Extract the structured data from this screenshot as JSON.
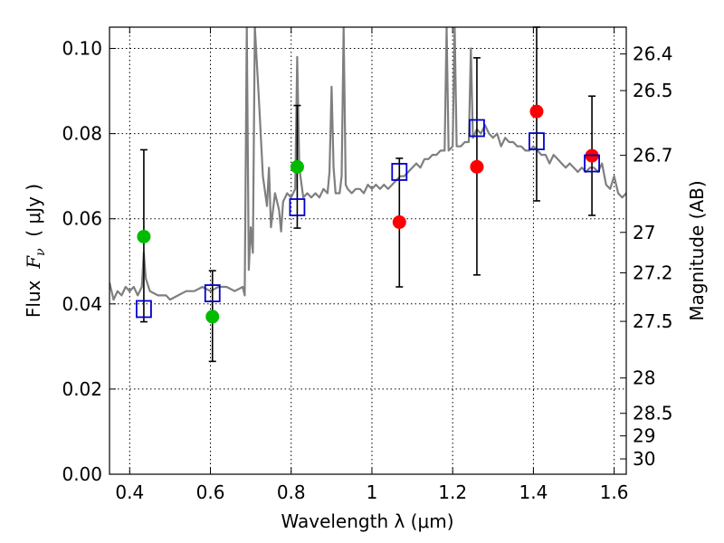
{
  "chart_data": {
    "type": "scatter",
    "xlabel": "Wavelength  λ (μm)",
    "ylabel": "Flux  F_ν  ( μJy )",
    "ylabel_parts": {
      "prefix": "Flux  ",
      "symbol": "F",
      "subscript": "ν",
      "unit": "  ( μJy )"
    },
    "y2label": "Magnitude (AB)",
    "xlim": [
      0.35,
      1.63
    ],
    "ylim": [
      0.0,
      0.105
    ],
    "grid": true,
    "x_ticks": [
      0.4,
      0.6,
      0.8,
      1.0,
      1.2,
      1.4,
      1.6
    ],
    "x_tick_labels": [
      "0.4",
      "0.6",
      "0.8",
      "1",
      "1.2",
      "1.4",
      "1.6"
    ],
    "y_ticks": [
      0.0,
      0.02,
      0.04,
      0.06,
      0.08,
      0.1
    ],
    "y_tick_labels": [
      "0.00",
      "0.02",
      "0.04",
      "0.06",
      "0.08",
      "0.10"
    ],
    "y2_tick_labels": [
      "26.4",
      "26.5",
      "26.7",
      "27",
      "27.2",
      "27.5",
      "28",
      "28.5",
      "29",
      "30"
    ],
    "y2_tick_fluxes": [
      0.0987,
      0.0901,
      0.0749,
      0.0568,
      0.0473,
      0.0359,
      0.0226,
      0.0143,
      0.009,
      0.0036
    ],
    "series": [
      {
        "name": "Model spectrum",
        "kind": "line",
        "color": "#7f7f7f",
        "x": [
          0.35,
          0.36,
          0.37,
          0.38,
          0.39,
          0.4,
          0.41,
          0.42,
          0.43,
          0.435,
          0.44,
          0.45,
          0.47,
          0.49,
          0.5,
          0.52,
          0.54,
          0.56,
          0.58,
          0.6,
          0.62,
          0.64,
          0.66,
          0.68,
          0.685,
          0.69,
          0.695,
          0.7,
          0.705,
          0.71,
          0.72,
          0.73,
          0.74,
          0.745,
          0.75,
          0.76,
          0.77,
          0.775,
          0.78,
          0.785,
          0.79,
          0.8,
          0.81,
          0.815,
          0.82,
          0.83,
          0.84,
          0.85,
          0.86,
          0.87,
          0.88,
          0.89,
          0.895,
          0.9,
          0.905,
          0.91,
          0.92,
          0.925,
          0.93,
          0.935,
          0.94,
          0.95,
          0.96,
          0.97,
          0.98,
          0.99,
          1.0,
          1.01,
          1.02,
          1.03,
          1.04,
          1.05,
          1.06,
          1.07,
          1.08,
          1.09,
          1.1,
          1.11,
          1.12,
          1.13,
          1.14,
          1.15,
          1.16,
          1.17,
          1.18,
          1.185,
          1.19,
          1.2,
          1.205,
          1.21,
          1.22,
          1.23,
          1.24,
          1.245,
          1.25,
          1.26,
          1.27,
          1.28,
          1.29,
          1.3,
          1.31,
          1.32,
          1.33,
          1.34,
          1.35,
          1.36,
          1.37,
          1.38,
          1.39,
          1.4,
          1.41,
          1.42,
          1.43,
          1.44,
          1.45,
          1.46,
          1.47,
          1.48,
          1.49,
          1.5,
          1.51,
          1.52,
          1.53,
          1.54,
          1.55,
          1.56,
          1.57,
          1.58,
          1.59,
          1.6,
          1.61,
          1.62,
          1.63
        ],
        "y": [
          0.045,
          0.041,
          0.043,
          0.042,
          0.044,
          0.043,
          0.044,
          0.042,
          0.044,
          0.052,
          0.046,
          0.043,
          0.042,
          0.042,
          0.041,
          0.042,
          0.043,
          0.043,
          0.044,
          0.043,
          0.044,
          0.044,
          0.043,
          0.044,
          0.042,
          0.105,
          0.048,
          0.058,
          0.052,
          0.105,
          0.088,
          0.07,
          0.063,
          0.072,
          0.058,
          0.066,
          0.062,
          0.057,
          0.064,
          0.065,
          0.066,
          0.065,
          0.067,
          0.098,
          0.072,
          0.065,
          0.066,
          0.065,
          0.066,
          0.065,
          0.067,
          0.066,
          0.071,
          0.091,
          0.072,
          0.066,
          0.066,
          0.07,
          0.105,
          0.068,
          0.067,
          0.066,
          0.067,
          0.067,
          0.066,
          0.068,
          0.067,
          0.068,
          0.067,
          0.068,
          0.067,
          0.068,
          0.069,
          0.07,
          0.07,
          0.071,
          0.072,
          0.073,
          0.072,
          0.074,
          0.074,
          0.075,
          0.075,
          0.076,
          0.076,
          0.105,
          0.076,
          0.077,
          0.105,
          0.077,
          0.077,
          0.078,
          0.078,
          0.1,
          0.079,
          0.081,
          0.08,
          0.082,
          0.08,
          0.079,
          0.08,
          0.077,
          0.079,
          0.078,
          0.078,
          0.077,
          0.077,
          0.076,
          0.076,
          0.077,
          0.076,
          0.075,
          0.075,
          0.073,
          0.075,
          0.074,
          0.073,
          0.072,
          0.073,
          0.072,
          0.071,
          0.072,
          0.071,
          0.072,
          0.072,
          0.071,
          0.073,
          0.068,
          0.067,
          0.07,
          0.066,
          0.065,
          0.066
        ]
      },
      {
        "name": "Observed (green)",
        "kind": "points",
        "color": "#00bb00",
        "x": [
          0.435,
          0.605,
          0.815
        ],
        "y": [
          0.0558,
          0.037,
          0.0722
        ]
      },
      {
        "name": "Observed (red)",
        "kind": "points",
        "color": "#ff0000",
        "x": [
          1.068,
          1.26,
          1.408,
          1.545
        ],
        "y": [
          0.0592,
          0.0722,
          0.0852,
          0.0748
        ]
      },
      {
        "name": "Model photometry",
        "kind": "open-squares",
        "color": "#0000cc",
        "x": [
          0.435,
          0.605,
          0.815,
          1.068,
          1.26,
          1.408,
          1.545
        ],
        "y": [
          0.0388,
          0.0425,
          0.0627,
          0.071,
          0.0813,
          0.0782,
          0.073
        ]
      },
      {
        "name": "Error bars",
        "kind": "errorbars",
        "color": "#000000",
        "x": [
          0.435,
          0.605,
          0.815,
          1.068,
          1.26,
          1.408,
          1.545
        ],
        "low": [
          0.0358,
          0.0265,
          0.0578,
          0.044,
          0.0468,
          0.0642,
          0.0608
        ],
        "high": [
          0.0762,
          0.0478,
          0.0866,
          0.0742,
          0.0978,
          0.105,
          0.0888
        ]
      }
    ]
  }
}
